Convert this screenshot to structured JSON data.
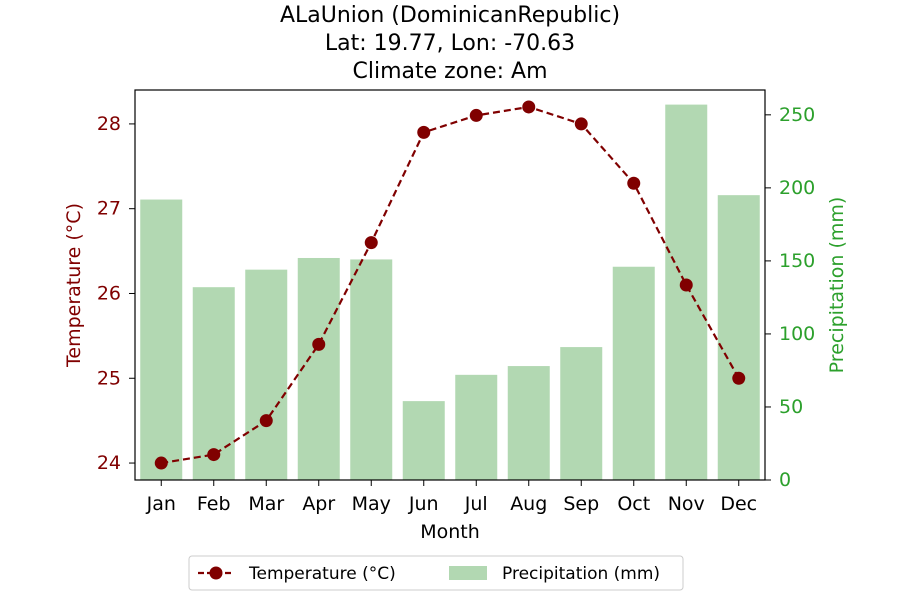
{
  "colors": {
    "temperature": "#800000",
    "precipitation": "#2ca02c",
    "precipitation_fill": "#b2d8b2",
    "axis": "#000000",
    "background": "#ffffff",
    "legend_border": "#cccccc"
  },
  "chart_data": {
    "type": "bar+line",
    "title_lines": [
      "ALaUnion (DominicanRepublic)",
      "Lat: 19.77, Lon: -70.63",
      "Climate zone: Am"
    ],
    "xlabel": "Month",
    "categories": [
      "Jan",
      "Feb",
      "Mar",
      "Apr",
      "May",
      "Jun",
      "Jul",
      "Aug",
      "Sep",
      "Oct",
      "Nov",
      "Dec"
    ],
    "series": [
      {
        "name": "Temperature (°C)",
        "type": "line",
        "axis": "left",
        "style": "dashed with circle markers",
        "values": [
          24.0,
          24.1,
          24.5,
          25.4,
          26.6,
          27.9,
          28.1,
          28.2,
          28.0,
          27.3,
          26.1,
          25.0
        ]
      },
      {
        "name": "Precipitation (mm)",
        "type": "bar",
        "axis": "right",
        "values": [
          192,
          132,
          144,
          152,
          151,
          54,
          72,
          78,
          91,
          146,
          257,
          195
        ]
      }
    ],
    "y_left": {
      "label": "Temperature (°C)",
      "ylim": [
        23.8,
        28.4
      ],
      "ticks": [
        24,
        25,
        26,
        27,
        28
      ]
    },
    "y_right": {
      "label": "Precipitation (mm)",
      "ylim": [
        0,
        267
      ],
      "ticks": [
        0,
        50,
        100,
        150,
        200,
        250
      ]
    },
    "grid": false,
    "legend": {
      "placement": "bottom-center",
      "entries": [
        "Temperature (°C)",
        "Precipitation (mm)"
      ]
    }
  }
}
